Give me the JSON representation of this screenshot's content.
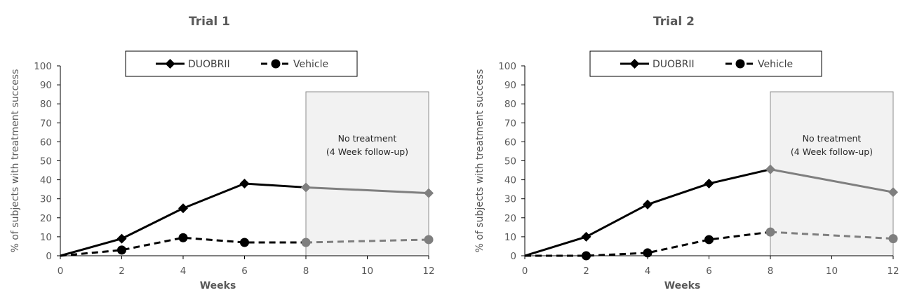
{
  "chart_data": [
    {
      "type": "line",
      "title": "Trial 1",
      "xlabel": "Weeks",
      "ylabel": "% of subjects with treatment success",
      "xlim": [
        0,
        12
      ],
      "ylim": [
        0,
        100
      ],
      "x_ticks": [
        0,
        2,
        4,
        6,
        8,
        10,
        12
      ],
      "y_ticks": [
        0,
        10,
        20,
        30,
        40,
        50,
        60,
        70,
        80,
        90,
        100
      ],
      "legend_position": "top",
      "treatment_end_week": 8,
      "shaded_region": {
        "from": 8,
        "to": 12,
        "label_line1": "No treatment",
        "label_line2": "(4 Week follow-up)"
      },
      "series": [
        {
          "name": "DUOBRII",
          "marker": "diamond",
          "style": "solid",
          "x": [
            0,
            2,
            4,
            6,
            8,
            12
          ],
          "values": [
            0,
            9,
            25,
            38,
            36,
            33
          ]
        },
        {
          "name": "Vehicle",
          "marker": "circle",
          "style": "dashed",
          "x": [
            0,
            2,
            4,
            6,
            8,
            12
          ],
          "values": [
            0,
            3,
            9.5,
            7,
            7,
            8.5
          ]
        }
      ]
    },
    {
      "type": "line",
      "title": "Trial 2",
      "xlabel": "Weeks",
      "ylabel": "% of subjects with treatment success",
      "xlim": [
        0,
        12
      ],
      "ylim": [
        0,
        100
      ],
      "x_ticks": [
        0,
        2,
        4,
        6,
        8,
        10,
        12
      ],
      "y_ticks": [
        0,
        10,
        20,
        30,
        40,
        50,
        60,
        70,
        80,
        90,
        100
      ],
      "legend_position": "top",
      "treatment_end_week": 8,
      "shaded_region": {
        "from": 8,
        "to": 12,
        "label_line1": "No treatment",
        "label_line2": "(4 Week follow-up)"
      },
      "series": [
        {
          "name": "DUOBRII",
          "marker": "diamond",
          "style": "solid",
          "x": [
            0,
            2,
            4,
            6,
            8,
            12
          ],
          "values": [
            0,
            10,
            27,
            38,
            45.5,
            33.5
          ]
        },
        {
          "name": "Vehicle",
          "marker": "circle",
          "style": "dashed",
          "x": [
            0,
            2,
            4,
            6,
            8,
            12
          ],
          "values": [
            0,
            0,
            1.5,
            8.5,
            12.5,
            9
          ]
        }
      ]
    }
  ],
  "colors": {
    "active": "#000000",
    "followup": "#7f7f7f",
    "shade": "#f2f2f2",
    "axis": "#000000",
    "text": "#595959"
  }
}
